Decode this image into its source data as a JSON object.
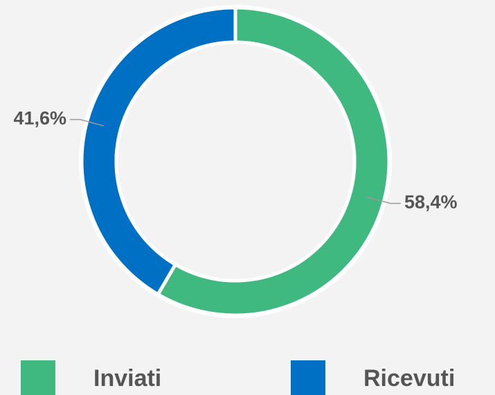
{
  "chart_data": {
    "type": "pie",
    "donut": true,
    "categories": [
      "Inviati",
      "Ricevuti"
    ],
    "values": [
      58.4,
      41.6
    ],
    "value_labels": [
      "58,4%",
      "41,6%"
    ],
    "colors": [
      "#40b980",
      "#0070c4"
    ],
    "legend": "bottom"
  }
}
